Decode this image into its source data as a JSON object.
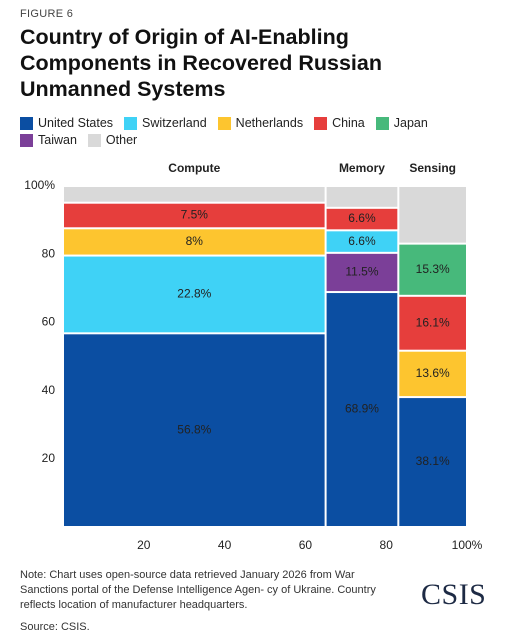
{
  "chart_data": {
    "type": "marimekko",
    "figure_label": "FIGURE 6",
    "title": "Country of Origin of AI-Enabling Components in Recovered Russian Unmanned Systems",
    "categories": [
      "Compute",
      "Memory",
      "Sensing"
    ],
    "widths": [
      65,
      18,
      17
    ],
    "series": [
      {
        "name": "United States",
        "color": "#0b4ea2",
        "values": [
          56.8,
          68.9,
          38.1
        ],
        "value_labels": [
          "56.8%",
          "68.9%",
          "38.1%"
        ]
      },
      {
        "name": "Switzerland",
        "color": "#3fd2f6",
        "values": [
          22.8,
          6.6,
          null
        ],
        "value_labels": [
          "22.8%",
          "6.6%",
          null
        ]
      },
      {
        "name": "Netherlands",
        "color": "#fdc52f",
        "values": [
          8,
          null,
          13.6
        ],
        "value_labels": [
          "8%",
          null,
          "13.6%"
        ]
      },
      {
        "name": "China",
        "color": "#e63e3c",
        "values": [
          7.5,
          6.6,
          16.1
        ],
        "value_labels": [
          "7.5%",
          "6.6%",
          "16.1%"
        ]
      },
      {
        "name": "Japan",
        "color": "#47b97b",
        "values": [
          null,
          null,
          15.3
        ],
        "value_labels": [
          null,
          null,
          "15.3%"
        ]
      },
      {
        "name": "Taiwan",
        "color": "#7b3f98",
        "values": [
          null,
          11.5,
          null
        ],
        "value_labels": [
          null,
          "11.5%",
          null
        ]
      },
      {
        "name": "Other",
        "color": "#d9d9d9",
        "values": [
          4.9,
          6.4,
          16.9
        ]
      }
    ],
    "stack_order": [
      0,
      5,
      1,
      2,
      3,
      4,
      6
    ],
    "xlim": [
      0,
      100
    ],
    "xticks": [
      20,
      40,
      60,
      80,
      {
        "value": 100,
        "label": "100%"
      }
    ],
    "ylim": [
      0,
      100
    ],
    "yticks": [
      20,
      40,
      60,
      80,
      {
        "value": 100,
        "label": "100%"
      }
    ],
    "note": "Note: Chart uses open-source data retrieved January 2026 from War Sanctions portal of the Defense Intelligence Agen- cy of Ukraine. Country reflects location of manufacturer headquarters.",
    "source": "Source: CSIS.",
    "logo": "CSIS"
  }
}
